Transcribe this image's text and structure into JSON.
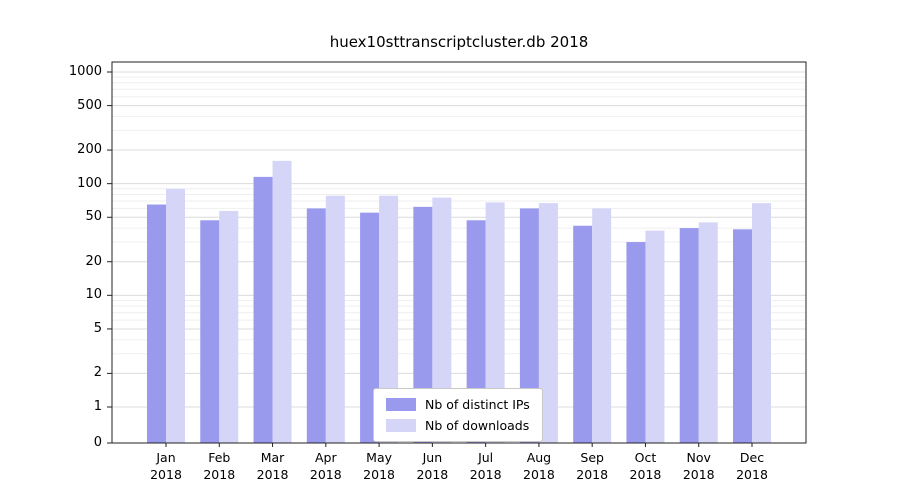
{
  "title": "huex10sttranscriptcluster.db 2018",
  "chart_data": {
    "type": "bar",
    "title": "huex10sttranscriptcluster.db 2018",
    "categories": [
      "Jan",
      "Feb",
      "Mar",
      "Apr",
      "May",
      "Jun",
      "Jul",
      "Aug",
      "Sep",
      "Oct",
      "Nov",
      "Dec"
    ],
    "category_year": "2018",
    "series": [
      {
        "name": "Nb of distinct IPs",
        "color": "#9999ee",
        "values": [
          65,
          47,
          115,
          60,
          55,
          62,
          47,
          60,
          42,
          30,
          40,
          39
        ]
      },
      {
        "name": "Nb of downloads",
        "color": "#d5d5f7",
        "values": [
          90,
          57,
          160,
          78,
          78,
          75,
          68,
          67,
          60,
          38,
          45,
          67
        ]
      }
    ],
    "yticks": [
      0,
      1,
      2,
      5,
      10,
      20,
      50,
      100,
      200,
      500,
      1000
    ],
    "ylim": [
      0,
      1000
    ],
    "yscale": "symlog",
    "grid": true,
    "legend_position": "lower center"
  }
}
